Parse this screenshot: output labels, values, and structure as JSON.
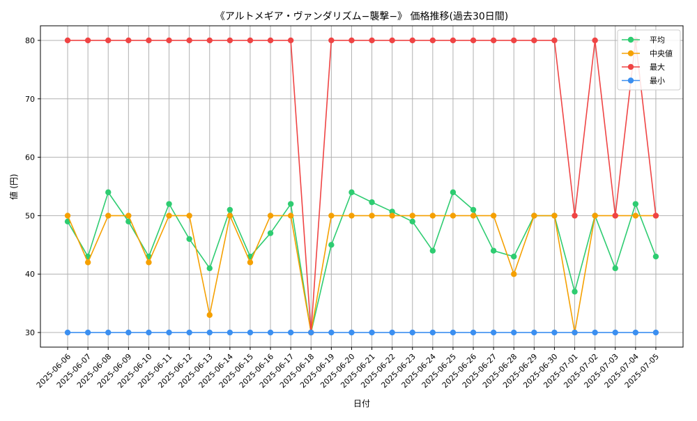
{
  "chart_data": {
    "type": "line",
    "title": "《アルトメギア・ヴァンダリズム−襲撃−》 価格推移(過去30日間)",
    "xlabel": "日付",
    "ylabel": "値 (円)",
    "ylim": [
      27.5,
      82.5
    ],
    "yticks": [
      30,
      40,
      50,
      60,
      70,
      80
    ],
    "grid": true,
    "legend_position": "top-right",
    "x": [
      "2025-06-06",
      "2025-06-07",
      "2025-06-08",
      "2025-06-09",
      "2025-06-10",
      "2025-06-11",
      "2025-06-12",
      "2025-06-13",
      "2025-06-14",
      "2025-06-15",
      "2025-06-16",
      "2025-06-17",
      "2025-06-18",
      "2025-06-19",
      "2025-06-20",
      "2025-06-21",
      "2025-06-22",
      "2025-06-23",
      "2025-06-24",
      "2025-06-25",
      "2025-06-26",
      "2025-06-27",
      "2025-06-28",
      "2025-06-29",
      "2025-06-30",
      "2025-07-01",
      "2025-07-02",
      "2025-07-03",
      "2025-07-04",
      "2025-07-05"
    ],
    "series": [
      {
        "name": "平均",
        "color": "#2ecc71",
        "values": [
          49,
          43,
          54,
          49,
          43,
          52,
          46,
          41,
          51,
          43,
          47,
          52,
          30,
          45,
          54,
          52.3,
          50.7,
          49,
          44,
          54,
          51,
          44,
          43,
          50,
          50,
          37,
          50,
          41,
          52,
          43
        ]
      },
      {
        "name": "中央値",
        "color": "#f5a000",
        "values": [
          50,
          42,
          50,
          50,
          42,
          50,
          50,
          33,
          50,
          42,
          50,
          50,
          30,
          50,
          50,
          50,
          50,
          50,
          50,
          50,
          50,
          50,
          40,
          50,
          50,
          30,
          50,
          50,
          50,
          50
        ]
      },
      {
        "name": "最大",
        "color": "#ef4444",
        "values": [
          80,
          80,
          80,
          80,
          80,
          80,
          80,
          80,
          80,
          80,
          80,
          80,
          30,
          80,
          80,
          80,
          80,
          80,
          80,
          80,
          80,
          80,
          80,
          80,
          80,
          50,
          80,
          50,
          80,
          50
        ]
      },
      {
        "name": "最小",
        "color": "#3b8ff0",
        "values": [
          30,
          30,
          30,
          30,
          30,
          30,
          30,
          30,
          30,
          30,
          30,
          30,
          30,
          30,
          30,
          30,
          30,
          30,
          30,
          30,
          30,
          30,
          30,
          30,
          30,
          30,
          30,
          30,
          30,
          30
        ]
      }
    ]
  }
}
